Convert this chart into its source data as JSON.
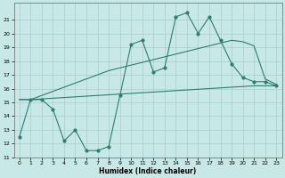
{
  "x": [
    0,
    1,
    2,
    3,
    4,
    5,
    6,
    7,
    8,
    9,
    10,
    11,
    12,
    13,
    14,
    15,
    16,
    17,
    18,
    19,
    20,
    21,
    22,
    23
  ],
  "y_main": [
    12.5,
    15.2,
    15.2,
    14.5,
    12.2,
    13.0,
    11.5,
    11.5,
    11.8,
    15.5,
    19.2,
    19.5,
    17.2,
    17.5,
    21.2,
    21.5,
    20.0,
    21.2,
    19.5,
    17.8,
    16.8,
    16.5,
    16.5,
    16.2
  ],
  "y_upper": [
    15.2,
    15.2,
    15.5,
    15.8,
    16.1,
    16.4,
    16.7,
    17.0,
    17.3,
    17.5,
    17.7,
    17.9,
    18.1,
    18.3,
    18.5,
    18.7,
    18.9,
    19.1,
    19.3,
    19.5,
    19.4,
    19.1,
    16.7,
    16.3
  ],
  "y_lower": [
    15.2,
    15.2,
    15.25,
    15.3,
    15.35,
    15.4,
    15.45,
    15.5,
    15.55,
    15.6,
    15.65,
    15.7,
    15.75,
    15.8,
    15.85,
    15.9,
    15.95,
    16.0,
    16.05,
    16.1,
    16.15,
    16.2,
    16.2,
    16.2
  ],
  "line_color": "#2e7d6e",
  "bg_color": "#c8e8e8",
  "grid_color": "#a8cece",
  "xlabel": "Humidex (Indice chaleur)",
  "ylim": [
    11,
    22
  ],
  "xlim": [
    -0.5,
    23.5
  ],
  "yticks": [
    11,
    12,
    13,
    14,
    15,
    16,
    17,
    18,
    19,
    20,
    21
  ],
  "xticks": [
    0,
    1,
    2,
    3,
    4,
    5,
    6,
    7,
    8,
    9,
    10,
    11,
    12,
    13,
    14,
    15,
    16,
    17,
    18,
    19,
    20,
    21,
    22,
    23
  ],
  "tick_fontsize": 4.5,
  "xlabel_fontsize": 5.5,
  "lw": 0.8,
  "ms": 2.0
}
